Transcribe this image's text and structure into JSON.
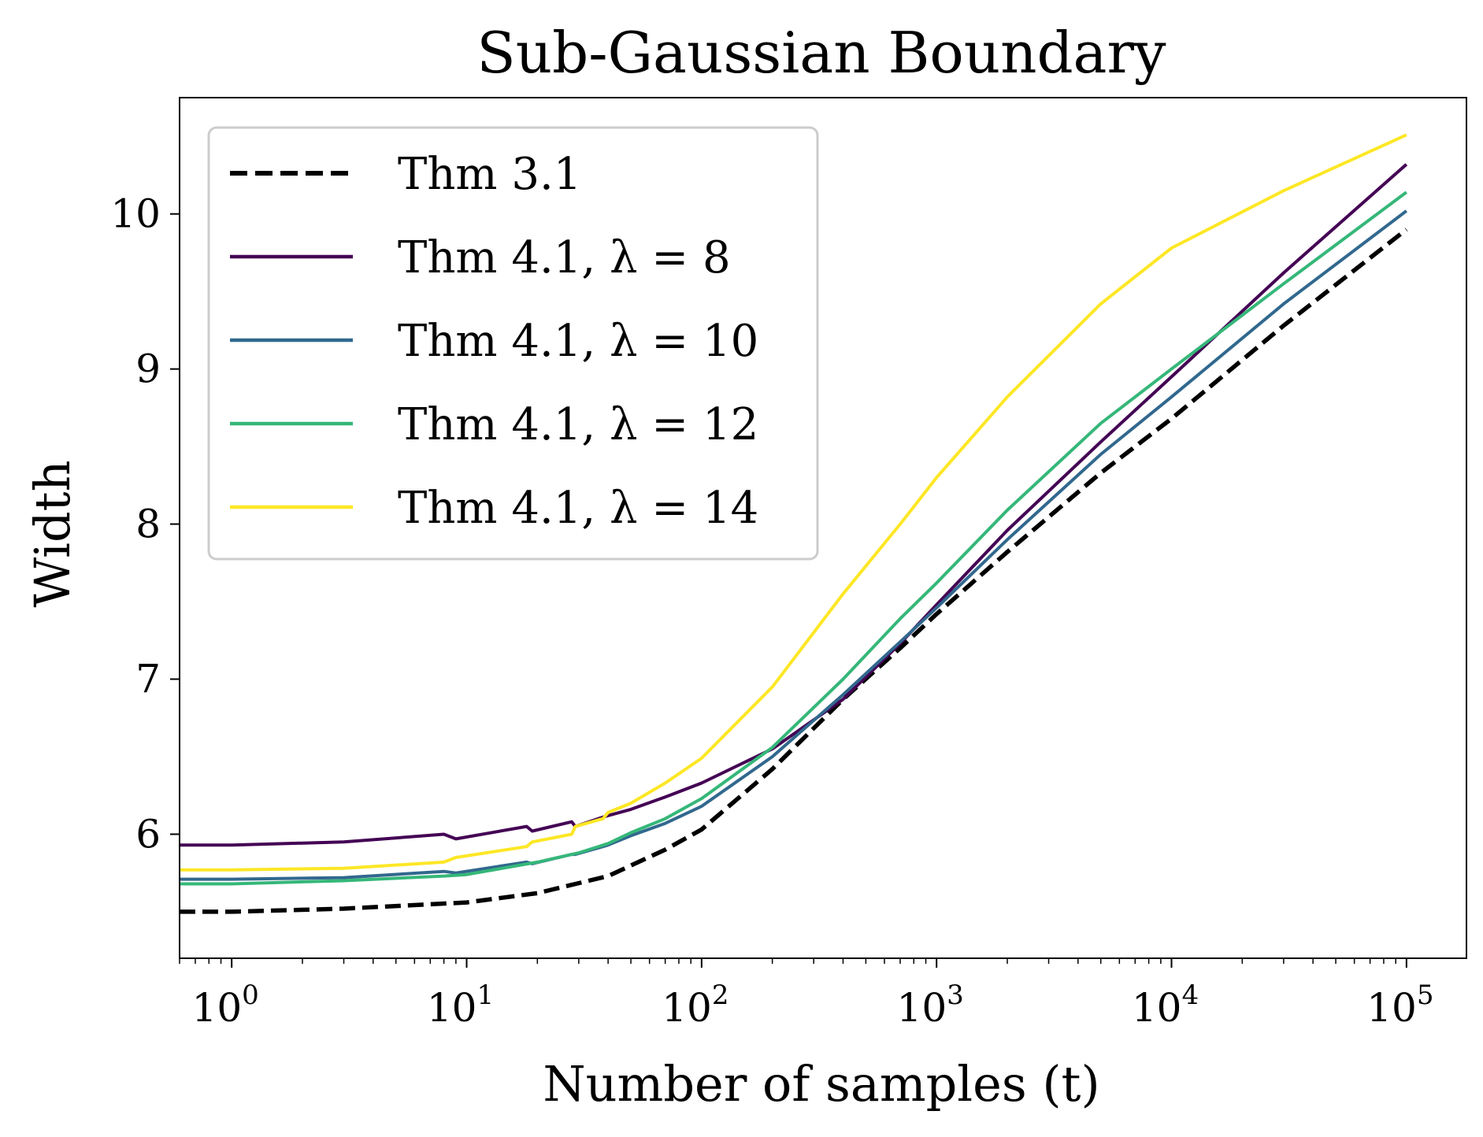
{
  "chart_data": {
    "type": "line",
    "title": "Sub-Gaussian Boundary",
    "xlabel": "Number of samples (t)",
    "ylabel": "Width",
    "x_scale": "log",
    "xlim": [
      0.6,
      180000
    ],
    "ylim": [
      5.2,
      10.75
    ],
    "x_ticks": [
      {
        "value": 1,
        "base": "10",
        "exp": "0"
      },
      {
        "value": 10,
        "base": "10",
        "exp": "1"
      },
      {
        "value": 100,
        "base": "10",
        "exp": "2"
      },
      {
        "value": 1000,
        "base": "10",
        "exp": "3"
      },
      {
        "value": 10000,
        "base": "10",
        "exp": "4"
      },
      {
        "value": 100000,
        "base": "10",
        "exp": "5"
      }
    ],
    "y_ticks": [
      {
        "value": 6,
        "label": "6"
      },
      {
        "value": 7,
        "label": "7"
      },
      {
        "value": 8,
        "label": "8"
      },
      {
        "value": 9,
        "label": "9"
      },
      {
        "value": 10,
        "label": "10"
      }
    ],
    "grid": false,
    "legend_position": "upper-left",
    "series": [
      {
        "name": "Thm 3.1",
        "color": "#000000",
        "dash": "dashed",
        "x": [
          0.6,
          1,
          3,
          10,
          20,
          40,
          70,
          100,
          200,
          400,
          700,
          1000,
          2000,
          5000,
          10000,
          30000,
          100000
        ],
        "y": [
          5.5,
          5.5,
          5.52,
          5.56,
          5.62,
          5.73,
          5.9,
          6.03,
          6.42,
          6.87,
          7.2,
          7.42,
          7.82,
          8.33,
          8.68,
          9.28,
          9.9
        ]
      },
      {
        "name": "Thm 4.1, λ = 8",
        "color": "#440154",
        "dash": "solid",
        "x": [
          0.6,
          1,
          3,
          8,
          9,
          18,
          19,
          28,
          29,
          38,
          40,
          50,
          70,
          100,
          200,
          400,
          700,
          1000,
          2000,
          5000,
          10000,
          30000,
          100000
        ],
        "y": [
          5.93,
          5.93,
          5.95,
          6.0,
          5.97,
          6.05,
          6.02,
          6.08,
          6.05,
          6.11,
          6.12,
          6.16,
          6.24,
          6.33,
          6.55,
          6.87,
          7.23,
          7.48,
          7.96,
          8.53,
          8.95,
          9.62,
          10.32
        ]
      },
      {
        "name": "Thm 4.1, λ = 10",
        "color": "#31688e",
        "dash": "solid",
        "x": [
          0.6,
          1,
          3,
          8,
          9,
          18,
          19,
          28,
          29,
          38,
          40,
          50,
          70,
          100,
          200,
          400,
          700,
          1000,
          2000,
          5000,
          10000,
          30000,
          100000
        ],
        "y": [
          5.71,
          5.71,
          5.72,
          5.76,
          5.75,
          5.82,
          5.81,
          5.87,
          5.87,
          5.92,
          5.93,
          5.99,
          6.07,
          6.18,
          6.5,
          6.9,
          7.24,
          7.46,
          7.9,
          8.45,
          8.82,
          9.42,
          10.02
        ]
      },
      {
        "name": "Thm 4.1, λ = 12",
        "color": "#35b779",
        "dash": "solid",
        "x": [
          0.6,
          1,
          3,
          8,
          10,
          20,
          30,
          40,
          50,
          70,
          100,
          200,
          400,
          700,
          1000,
          2000,
          5000,
          10000,
          30000,
          100000
        ],
        "y": [
          5.68,
          5.68,
          5.7,
          5.73,
          5.74,
          5.82,
          5.88,
          5.94,
          6.01,
          6.1,
          6.23,
          6.56,
          7.0,
          7.39,
          7.62,
          8.09,
          8.65,
          9.0,
          9.55,
          10.14
        ]
      },
      {
        "name": "Thm 4.1, λ = 14",
        "color": "#fde725",
        "dash": "solid",
        "x": [
          0.6,
          1,
          3,
          8,
          9,
          18,
          19,
          28,
          29,
          38,
          40,
          50,
          70,
          100,
          200,
          400,
          700,
          1000,
          2000,
          5000,
          10000,
          30000,
          100000
        ],
        "y": [
          5.77,
          5.77,
          5.78,
          5.82,
          5.85,
          5.92,
          5.95,
          6.0,
          6.05,
          6.1,
          6.14,
          6.2,
          6.33,
          6.49,
          6.95,
          7.55,
          8.0,
          8.3,
          8.82,
          9.42,
          9.78,
          10.15,
          10.51
        ]
      }
    ]
  }
}
